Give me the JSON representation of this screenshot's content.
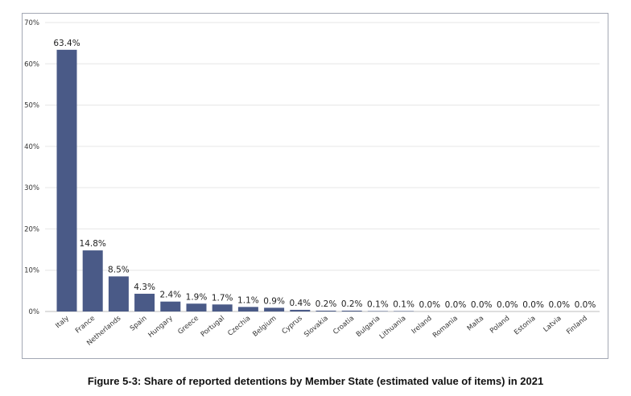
{
  "caption": "Figure 5-3: Share of reported detentions by Member State (estimated value of items) in 2021",
  "colors": {
    "bar": "#4a5a87",
    "grid": "#e6e6e6",
    "axis": "#bdbdbd",
    "text": "#333333"
  },
  "chart_data": {
    "type": "bar",
    "title": "",
    "xlabel": "",
    "ylabel": "",
    "ylim": [
      0,
      70
    ],
    "yticks": [
      "0%",
      "10%",
      "20%",
      "30%",
      "40%",
      "50%",
      "60%",
      "70%"
    ],
    "grid": true,
    "categories": [
      "Italy",
      "France",
      "Netherlands",
      "Spain",
      "Hungary",
      "Greece",
      "Portugal",
      "Czechia",
      "Belgium",
      "Cyprus",
      "Slovakia",
      "Croatia",
      "Bulgaria",
      "Lithuania",
      "Ireland",
      "Romania",
      "Malta",
      "Poland",
      "Estonia",
      "Latvia",
      "Finland"
    ],
    "values": [
      63.4,
      14.8,
      8.5,
      4.3,
      2.4,
      1.9,
      1.7,
      1.1,
      0.9,
      0.4,
      0.2,
      0.2,
      0.1,
      0.1,
      0.0,
      0.0,
      0.0,
      0.0,
      0.0,
      0.0,
      0.0
    ],
    "value_labels": [
      "63.4%",
      "14.8%",
      "8.5%",
      "4.3%",
      "2.4%",
      "1.9%",
      "1.7%",
      "1.1%",
      "0.9%",
      "0.4%",
      "0.2%",
      "0.2%",
      "0.1%",
      "0.1%",
      "0.0%",
      "0.0%",
      "0.0%",
      "0.0%",
      "0.0%",
      "0.0%",
      "0.0%"
    ]
  }
}
